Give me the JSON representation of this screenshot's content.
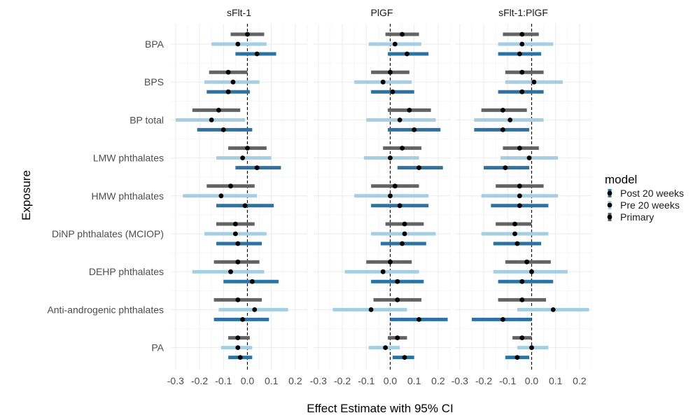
{
  "chart_data": {
    "type": "forest",
    "facets": [
      "sFlt-1",
      "PlGF",
      "sFlt-1:PlGF"
    ],
    "categories": [
      "BPA",
      "BPS",
      "BP total",
      "LMW phthalates",
      "HMW phthalates",
      "DiNP phthalates (MCIOP)",
      "DEHP phthalates",
      "Anti-androgenic phthalates",
      "PA"
    ],
    "xlabel": "Effect Estimate with 95% CI",
    "ylabel": "Exposure",
    "xlim": [
      -0.32,
      0.25
    ],
    "xticks": [
      -0.3,
      -0.2,
      -0.1,
      0.0,
      0.1,
      0.2
    ],
    "xtick_labels": [
      "-0.3",
      "-0.2",
      "-0.1",
      "0.0",
      "0.1",
      "0.2"
    ],
    "reference_line": 0,
    "legend": {
      "title": "model",
      "position": "right",
      "entries": [
        "Post 20 weeks",
        "Pre 20 weeks",
        "Primary"
      ]
    },
    "series": [
      {
        "name": "Primary",
        "color": "#636363",
        "data": [
          [
            [
              0.0,
              -0.07,
              0.07
            ],
            [
              -0.08,
              -0.16,
              0.0
            ],
            [
              -0.12,
              -0.23,
              -0.03
            ],
            [
              0.0,
              -0.08,
              0.08
            ],
            [
              -0.07,
              -0.17,
              0.03
            ],
            [
              -0.05,
              -0.13,
              0.03
            ],
            [
              -0.04,
              -0.14,
              0.05
            ],
            [
              -0.04,
              -0.14,
              0.06
            ],
            [
              -0.04,
              -0.08,
              0.01
            ]
          ],
          [
            [
              0.05,
              -0.02,
              0.12
            ],
            [
              0.0,
              -0.08,
              0.08
            ],
            [
              0.08,
              -0.01,
              0.17
            ],
            [
              0.05,
              -0.03,
              0.13
            ],
            [
              0.02,
              -0.08,
              0.12
            ],
            [
              0.06,
              -0.02,
              0.14
            ],
            [
              0.0,
              -0.1,
              0.09
            ],
            [
              0.03,
              -0.07,
              0.13
            ],
            [
              0.03,
              -0.01,
              0.07
            ]
          ],
          [
            [
              -0.04,
              -0.12,
              0.03
            ],
            [
              -0.04,
              -0.11,
              0.05
            ],
            [
              -0.12,
              -0.21,
              -0.02
            ],
            [
              -0.05,
              -0.12,
              0.03
            ],
            [
              -0.05,
              -0.15,
              0.05
            ],
            [
              -0.07,
              -0.15,
              0.0
            ],
            [
              -0.02,
              -0.11,
              0.08
            ],
            [
              -0.04,
              -0.14,
              0.06
            ],
            [
              -0.04,
              -0.08,
              0.0
            ]
          ]
        ]
      },
      {
        "name": "Pre 20 weeks",
        "color": "#a6cee3",
        "data": [
          [
            [
              -0.04,
              -0.15,
              0.08
            ],
            [
              -0.06,
              -0.18,
              0.05
            ],
            [
              -0.15,
              -0.3,
              -0.01
            ],
            [
              -0.02,
              -0.13,
              0.1
            ],
            [
              -0.11,
              -0.27,
              0.04
            ],
            [
              -0.05,
              -0.18,
              0.08
            ],
            [
              -0.07,
              -0.23,
              0.07
            ],
            [
              0.03,
              -0.12,
              0.17
            ],
            [
              -0.04,
              -0.11,
              0.02
            ]
          ],
          [
            [
              0.02,
              -0.09,
              0.13
            ],
            [
              -0.03,
              -0.15,
              0.09
            ],
            [
              0.04,
              -0.1,
              0.19
            ],
            [
              0.0,
              -0.11,
              0.12
            ],
            [
              0.0,
              -0.15,
              0.16
            ],
            [
              0.06,
              -0.08,
              0.19
            ],
            [
              -0.03,
              -0.19,
              0.12
            ],
            [
              -0.08,
              -0.24,
              0.07
            ],
            [
              -0.02,
              -0.09,
              0.04
            ]
          ],
          [
            [
              -0.04,
              -0.14,
              0.09
            ],
            [
              0.01,
              -0.11,
              0.13
            ],
            [
              -0.09,
              -0.24,
              0.05
            ],
            [
              -0.01,
              -0.13,
              0.11
            ],
            [
              -0.05,
              -0.21,
              0.11
            ],
            [
              -0.07,
              -0.21,
              0.07
            ],
            [
              0.0,
              -0.16,
              0.15
            ],
            [
              0.09,
              -0.06,
              0.24
            ],
            [
              0.0,
              -0.06,
              0.07
            ]
          ]
        ]
      },
      {
        "name": "Post 20 weeks",
        "color": "#2b73a3",
        "data": [
          [
            [
              0.04,
              -0.05,
              0.12
            ],
            [
              -0.08,
              -0.17,
              0.01
            ],
            [
              -0.1,
              -0.21,
              0.02
            ],
            [
              0.04,
              -0.05,
              0.14
            ],
            [
              -0.01,
              -0.13,
              0.11
            ],
            [
              -0.04,
              -0.13,
              0.06
            ],
            [
              0.02,
              -0.1,
              0.13
            ],
            [
              -0.02,
              -0.14,
              0.09
            ],
            [
              -0.03,
              -0.08,
              0.02
            ]
          ],
          [
            [
              0.07,
              -0.01,
              0.16
            ],
            [
              0.01,
              -0.08,
              0.1
            ],
            [
              0.1,
              -0.01,
              0.21
            ],
            [
              0.12,
              0.03,
              0.22
            ],
            [
              0.04,
              -0.08,
              0.16
            ],
            [
              0.05,
              -0.04,
              0.15
            ],
            [
              0.03,
              -0.08,
              0.14
            ],
            [
              0.12,
              0.0,
              0.24
            ],
            [
              0.06,
              0.01,
              0.1
            ]
          ],
          [
            [
              -0.05,
              -0.14,
              0.04
            ],
            [
              -0.04,
              -0.14,
              0.05
            ],
            [
              -0.12,
              -0.24,
              -0.01
            ],
            [
              -0.11,
              -0.2,
              -0.01
            ],
            [
              -0.05,
              -0.17,
              0.07
            ],
            [
              -0.06,
              -0.16,
              0.04
            ],
            [
              -0.04,
              -0.14,
              0.09
            ],
            [
              -0.12,
              -0.25,
              0.0
            ],
            [
              -0.06,
              -0.11,
              -0.01
            ]
          ]
        ]
      }
    ]
  }
}
